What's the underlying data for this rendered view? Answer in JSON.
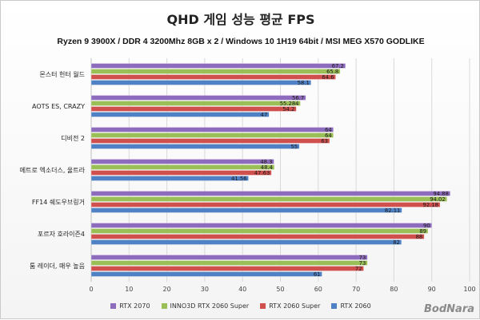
{
  "chart_data": {
    "type": "bar",
    "orientation": "horizontal",
    "title": "QHD 게임 성능 평균 FPS",
    "subtitle": "Ryzen 9 3900X / DDR 4 3200Mhz 8GB x 2 / Windows 10 1H19 64bit / MSI MEG X570 GODLIKE",
    "categories": [
      "몬스터 헌터 월드",
      "AOTS ES, CRAZY",
      "디비전 2",
      "메트로 엑소더스, 울트라",
      "FF14 쉐도우브링거",
      "포르자 호라이즌4",
      "툼 레이더, 매우 높음"
    ],
    "series": [
      {
        "name": "RTX 2070",
        "color": "#8e6cbd",
        "values": [
          67.2,
          56.7,
          64,
          48.3,
          94.88,
          90,
          73
        ],
        "labels": [
          "67.2",
          "56.7",
          "64",
          "48.3",
          "94.88",
          "90",
          "73"
        ]
      },
      {
        "name": "INNO3D RTX 2060 Super",
        "color": "#9bbf57",
        "values": [
          65.8,
          55.284,
          64,
          48.4,
          94.02,
          89,
          73
        ],
        "labels": [
          "65.8",
          "55.284",
          "64",
          "48.4",
          "94.02",
          "89",
          "73"
        ]
      },
      {
        "name": "RTX 2060 Super",
        "color": "#d0504d",
        "values": [
          64.6,
          54.2,
          63,
          47.63,
          92.18,
          88,
          72
        ],
        "labels": [
          "64.6",
          "54.2",
          "63",
          "47.63",
          "92.18",
          "88",
          "72"
        ]
      },
      {
        "name": "RTX 2060",
        "color": "#4f81c4",
        "values": [
          58.1,
          47,
          55,
          41.56,
          82.11,
          82,
          61
        ],
        "labels": [
          "58.1",
          "47",
          "55",
          "41.56",
          "82.11",
          "82",
          "61"
        ]
      }
    ],
    "xlim": [
      0,
      100
    ],
    "xticks": [
      0,
      10,
      20,
      30,
      40,
      50,
      60,
      70,
      80,
      90,
      100
    ],
    "grid": true,
    "legend_position": "bottom",
    "watermark": "BodNara"
  }
}
